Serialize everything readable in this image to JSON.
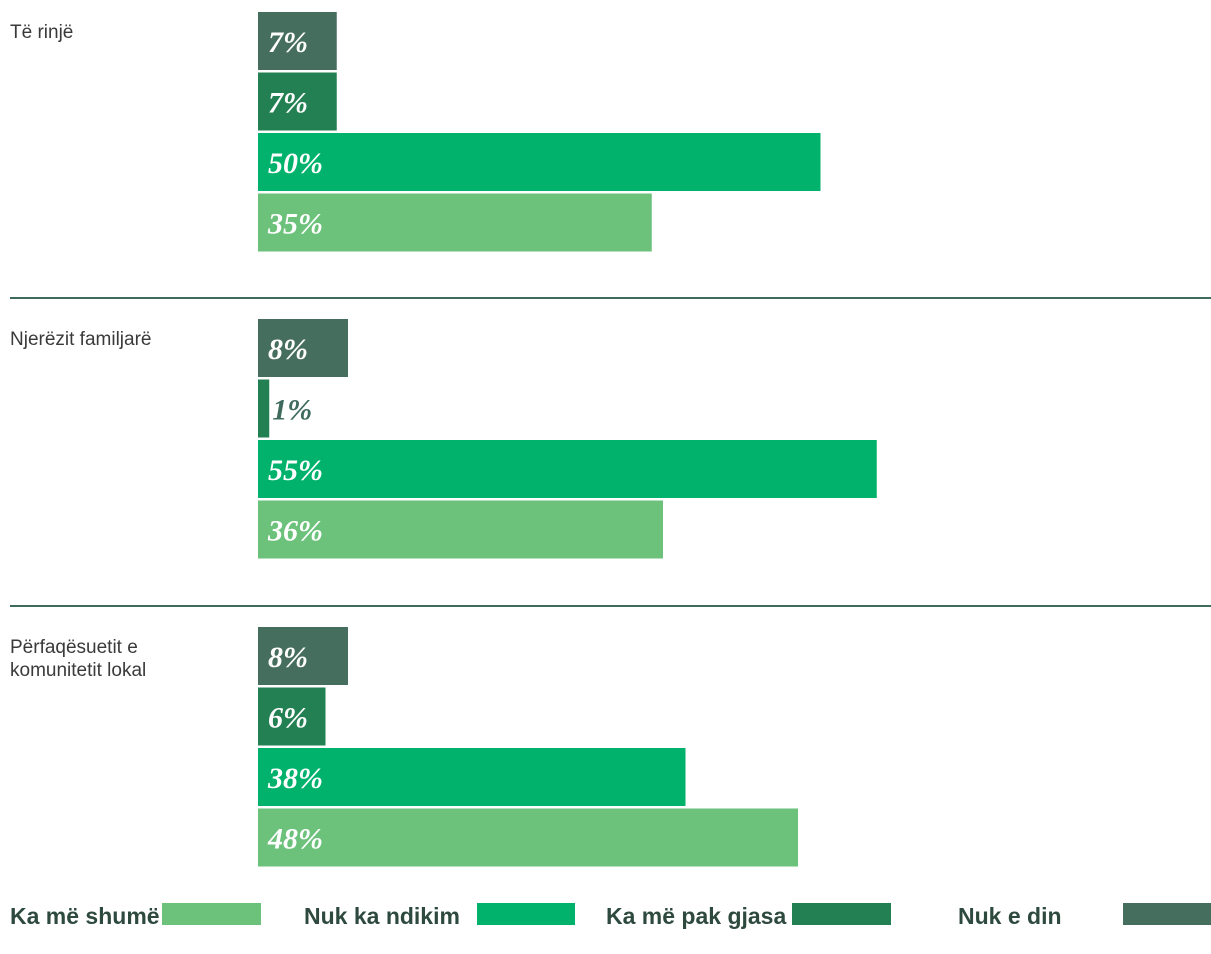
{
  "chart_data": {
    "type": "bar",
    "orientation": "horizontal",
    "unit": "%",
    "xlim": [
      0,
      100
    ],
    "grid": false,
    "legend_position": "bottom",
    "groups": [
      {
        "category": "Të rinjë",
        "label_lines": [
          "Të rinjë"
        ],
        "bars": [
          {
            "series": "Nuk e din",
            "value": 7,
            "label": "7%"
          },
          {
            "series": "Ka më pak gjasa",
            "value": 7,
            "label": "7%"
          },
          {
            "series": "Nuk ka ndikim",
            "value": 50,
            "label": "50%"
          },
          {
            "series": "Ka më shumë",
            "value": 35,
            "label": "35%"
          }
        ]
      },
      {
        "category": "Njerëzit familjarë",
        "label_lines": [
          "Njerëzit familjarë"
        ],
        "bars": [
          {
            "series": "Nuk e din",
            "value": 8,
            "label": "8%"
          },
          {
            "series": "Ka më pak gjasa",
            "value": 1,
            "label": "1%"
          },
          {
            "series": "Nuk ka ndikim",
            "value": 55,
            "label": "55%"
          },
          {
            "series": "Ka më shumë",
            "value": 36,
            "label": "36%"
          }
        ]
      },
      {
        "category": "Përfaqësuetit e komunitetit lokal",
        "label_lines": [
          "Përfaqësuetit e",
          "komunitetit lokal"
        ],
        "bars": [
          {
            "series": "Nuk e din",
            "value": 8,
            "label": "8%"
          },
          {
            "series": "Ka më pak gjasa",
            "value": 6,
            "label": "6%"
          },
          {
            "series": "Nuk ka ndikim",
            "value": 38,
            "label": "38%"
          },
          {
            "series": "Ka më shumë",
            "value": 48,
            "label": "48%"
          }
        ]
      }
    ],
    "series": [
      {
        "name": "Ka më shumë",
        "color": "#6cc17b"
      },
      {
        "name": "Nuk ka ndikim",
        "color": "#00b26b"
      },
      {
        "name": "Ka më pak gjasa",
        "color": "#238052"
      },
      {
        "name": "Nuk e din",
        "color": "#466e5e"
      }
    ],
    "separator_color": "#3f6b5e"
  }
}
